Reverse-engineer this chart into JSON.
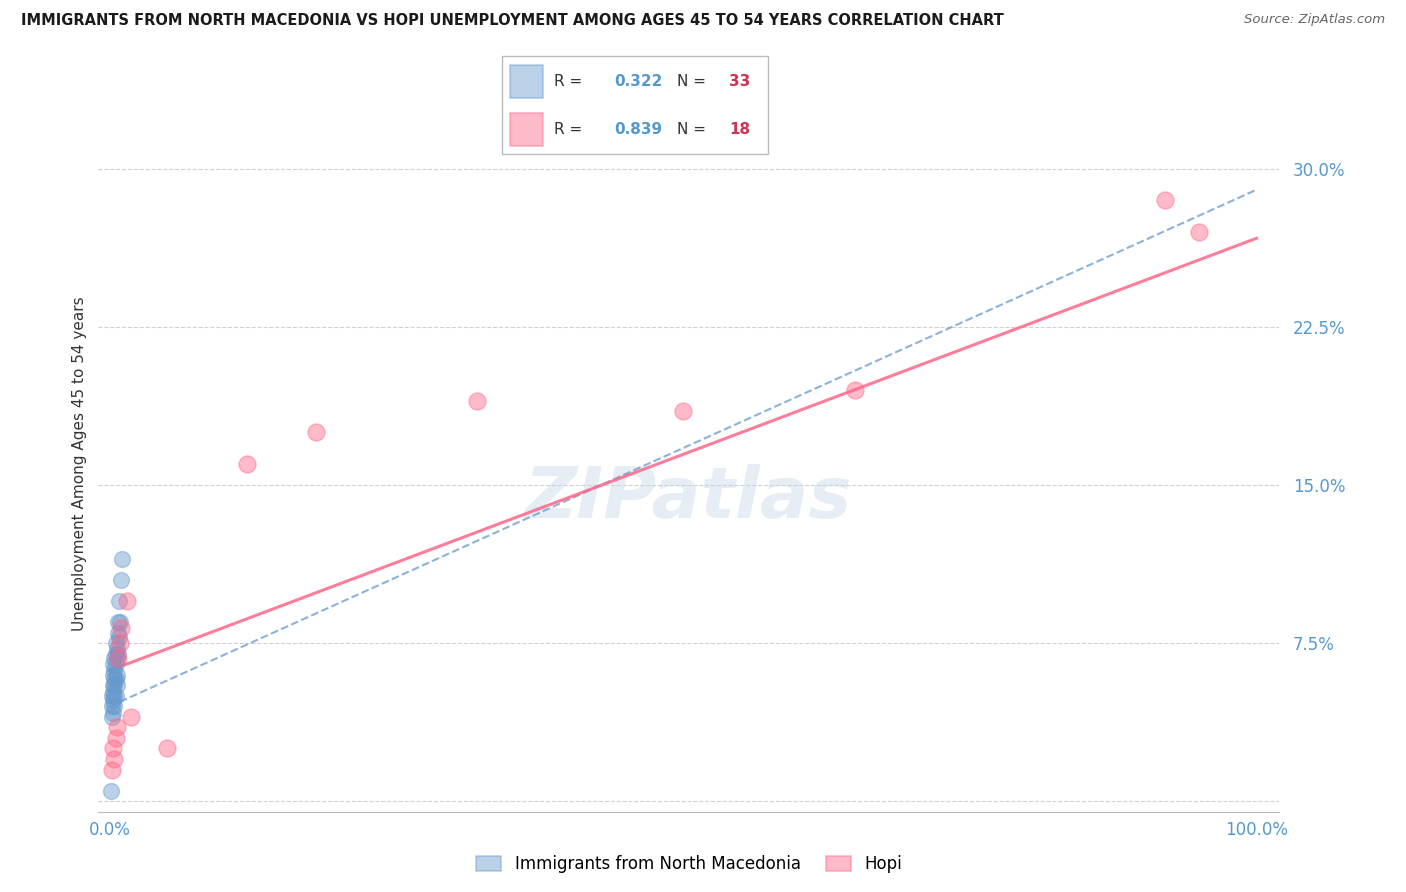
{
  "title": "IMMIGRANTS FROM NORTH MACEDONIA VS HOPI UNEMPLOYMENT AMONG AGES 45 TO 54 YEARS CORRELATION CHART",
  "source": "Source: ZipAtlas.com",
  "ylabel": "Unemployment Among Ages 45 to 54 years",
  "yticks": [
    0.0,
    0.075,
    0.15,
    0.225,
    0.3
  ],
  "ytick_labels": [
    "",
    "7.5%",
    "15.0%",
    "22.5%",
    "30.0%"
  ],
  "xticks": [
    0.0,
    0.2,
    0.4,
    0.6,
    0.8,
    1.0
  ],
  "xtick_labels": [
    "0.0%",
    "",
    "",
    "",
    "",
    "100.0%"
  ],
  "xlim": [
    -0.01,
    1.02
  ],
  "ylim": [
    -0.005,
    0.325
  ],
  "blue_R": "0.322",
  "blue_N": "33",
  "pink_R": "0.839",
  "pink_N": "18",
  "blue_color": "#6699CC",
  "pink_color": "#FF6688",
  "background_color": "#FFFFFF",
  "watermark": "ZIPatlas",
  "blue_scatter_x": [
    0.001,
    0.002,
    0.002,
    0.002,
    0.003,
    0.003,
    0.003,
    0.003,
    0.003,
    0.003,
    0.004,
    0.004,
    0.004,
    0.004,
    0.004,
    0.004,
    0.005,
    0.005,
    0.005,
    0.005,
    0.005,
    0.006,
    0.006,
    0.006,
    0.006,
    0.007,
    0.007,
    0.007,
    0.008,
    0.008,
    0.009,
    0.01,
    0.011
  ],
  "blue_scatter_y": [
    0.005,
    0.04,
    0.045,
    0.05,
    0.042,
    0.048,
    0.052,
    0.055,
    0.06,
    0.065,
    0.045,
    0.05,
    0.055,
    0.058,
    0.062,
    0.068,
    0.05,
    0.058,
    0.065,
    0.07,
    0.075,
    0.055,
    0.06,
    0.068,
    0.072,
    0.07,
    0.08,
    0.085,
    0.078,
    0.095,
    0.085,
    0.105,
    0.115
  ],
  "pink_scatter_x": [
    0.002,
    0.003,
    0.004,
    0.005,
    0.006,
    0.007,
    0.009,
    0.01,
    0.015,
    0.018,
    0.05,
    0.12,
    0.18,
    0.32,
    0.5,
    0.65,
    0.92,
    0.95
  ],
  "pink_scatter_y": [
    0.015,
    0.025,
    0.02,
    0.03,
    0.035,
    0.068,
    0.075,
    0.082,
    0.095,
    0.04,
    0.025,
    0.16,
    0.175,
    0.19,
    0.185,
    0.195,
    0.285,
    0.27
  ],
  "blue_line_intercept": 0.045,
  "blue_line_slope": 0.245,
  "pink_line_intercept": 0.062,
  "pink_line_slope": 0.205,
  "label_immigrants": "Immigrants from North Macedonia",
  "label_hopi": "Hopi"
}
